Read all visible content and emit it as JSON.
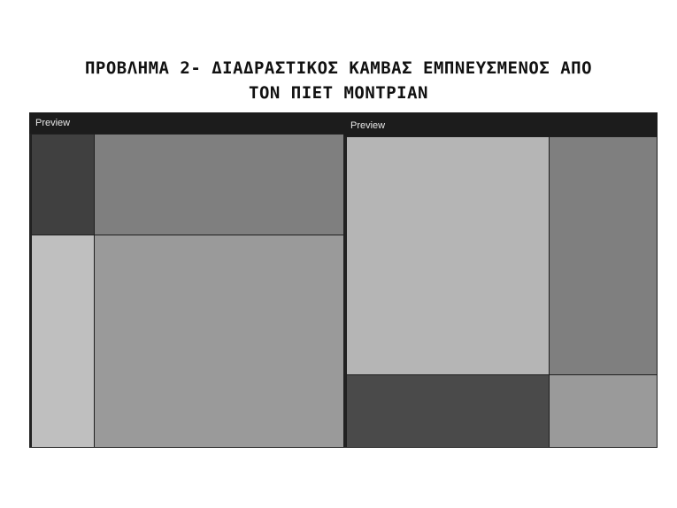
{
  "title": {
    "line1": "ΠΡΟΒΛΗΜΑ 2- ΔΙΑΔΡΑΣΤΙΚΟΣ ΚΑΜΒΑΣ ΕΜΠΝΕΥΣΜΕΝΟΣ ΑΠΟ",
    "line2": "ΤΟΝ ΠΙΕΤ ΜΟΝΤΡΙΑΝ"
  },
  "panels": [
    {
      "label": "Preview",
      "cells": [
        {
          "color": "#404040"
        },
        {
          "color": "#7f7f7f"
        },
        {
          "color": "#bfbfbf"
        },
        {
          "color": "#9a9a9a"
        }
      ]
    },
    {
      "label": "Preview",
      "cells": [
        {
          "color": "#b5b5b5"
        },
        {
          "color": "#7f7f7f"
        },
        {
          "color": "#4a4a4a"
        },
        {
          "color": "#9a9a9a"
        }
      ]
    }
  ]
}
